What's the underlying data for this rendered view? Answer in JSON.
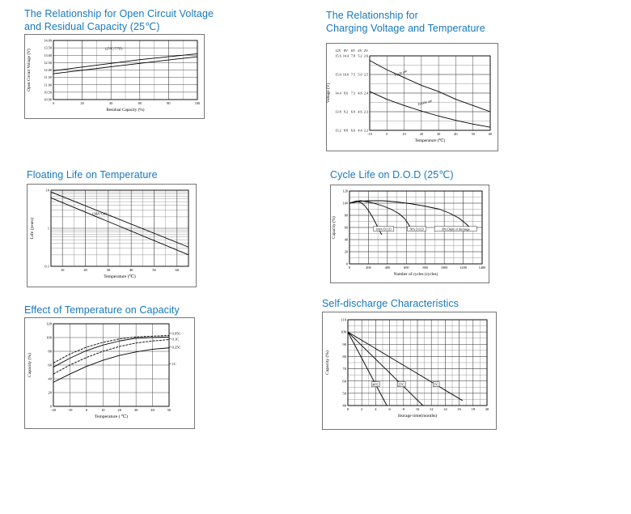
{
  "colors": {
    "title": "#1878be",
    "line": "#000000"
  },
  "chart_data": [
    {
      "type": "line",
      "title": "The Relationship for Open Circuit Voltage\nand Residual Capacity (25℃)",
      "xlabel": "Residual Capacity (%)",
      "ylabel": "Open Circuit Voltage (V)",
      "x": {
        "min": 0,
        "max": 100,
        "ticks": [
          0,
          20,
          40,
          60,
          80,
          100
        ],
        "labels": [
          "0",
          "20",
          "40",
          "60",
          "80",
          "100"
        ],
        "minor": 10
      },
      "y": {
        "min": 10,
        "max": 14,
        "ticks": [
          10,
          10.5,
          11,
          11.5,
          12,
          12.5,
          13,
          13.5,
          14
        ],
        "labels": [
          "10.00",
          "10.50",
          "11.00",
          "11.50",
          "12.00",
          "12.50",
          "13.00",
          "13.50",
          "14.00"
        ]
      },
      "series": [
        {
          "name": "upper-line",
          "points": [
            [
              0,
              11.95
            ],
            [
              20,
              12.2
            ],
            [
              40,
              12.45
            ],
            [
              60,
              12.7
            ],
            [
              80,
              12.9
            ],
            [
              100,
              13.1
            ]
          ]
        },
        {
          "name": "lower-line",
          "points": [
            [
              0,
              11.75
            ],
            [
              20,
              11.98
            ],
            [
              40,
              12.22
            ],
            [
              60,
              12.45
            ],
            [
              80,
              12.68
            ],
            [
              100,
              12.9
            ]
          ]
        }
      ],
      "annotations": [
        {
          "x": 42,
          "y": 13.45,
          "text": "(25℃/77℉)",
          "size": 4.2
        }
      ]
    },
    {
      "type": "line",
      "title": "The Relationship for\nCharging Voltage and Temperature",
      "xlabel": "Temperature (℃)",
      "ylabel": "Voltage (V)",
      "x": {
        "min": -10,
        "max": 60,
        "ticks": [
          -10,
          0,
          10,
          20,
          30,
          40,
          50,
          60
        ],
        "labels": [
          "-10",
          "0",
          "10",
          "20",
          "30",
          "40",
          "50",
          "60"
        ]
      },
      "y": {
        "min": 13.2,
        "max": 15.6,
        "ticks": [
          13.2,
          13.8,
          14.4,
          15,
          15.6
        ],
        "minor": 0.3,
        "hide_labels": true
      },
      "y_multi": {
        "headers": [
          "12V",
          "8V",
          "6V",
          "4V",
          "2V"
        ],
        "rows": [
          [
            "15.6",
            "10.4",
            "7.8",
            "5.2",
            "2.6"
          ],
          [
            "15.0",
            "10.0",
            "7.5",
            "5.0",
            "2.5"
          ],
          [
            "14.4",
            "9.6",
            "7.2",
            "4.8",
            "2.4"
          ],
          [
            "13.8",
            "9.2",
            "6.9",
            "4.6",
            "2.3"
          ],
          [
            "13.2",
            "8.8",
            "6.6",
            "4.4",
            "2.2"
          ]
        ]
      },
      "series": [
        {
          "name": "cycle-use",
          "points": [
            [
              -10,
              15.45
            ],
            [
              0,
              15.15
            ],
            [
              10,
              14.9
            ],
            [
              20,
              14.65
            ],
            [
              30,
              14.45
            ],
            [
              40,
              14.2
            ],
            [
              50,
              14.0
            ],
            [
              60,
              13.8
            ]
          ]
        },
        {
          "name": "trickle-use",
          "points": [
            [
              -10,
              14.45
            ],
            [
              0,
              14.2
            ],
            [
              10,
              14.0
            ],
            [
              20,
              13.82
            ],
            [
              30,
              13.66
            ],
            [
              40,
              13.52
            ],
            [
              50,
              13.4
            ],
            [
              60,
              13.3
            ]
          ]
        }
      ],
      "annotations": [
        {
          "x": 8,
          "y": 15.05,
          "text": "Cycle use",
          "size": 4.2,
          "rotate": -20
        },
        {
          "x": 22,
          "y": 14.1,
          "text": "Trickle use",
          "size": 4.2,
          "rotate": -16
        }
      ]
    },
    {
      "type": "line",
      "title": "Floating Life on Temperature",
      "xlabel": "Temperature (℃)",
      "ylabel": "Life (years)",
      "x": {
        "min": 5,
        "max": 65,
        "ticks": [
          10,
          20,
          30,
          40,
          50,
          60
        ],
        "labels": [
          "10",
          "20",
          "30",
          "40",
          "50",
          "60"
        ],
        "minor": 5
      },
      "y": {
        "min": 0.1,
        "max": 10,
        "scale": "log",
        "ticks": [
          0.1,
          1,
          10
        ],
        "labels": [
          "0.1",
          "1",
          "10"
        ],
        "log_minor": true
      },
      "series": [
        {
          "name": "upper-band-line",
          "points": [
            [
              5,
              9
            ],
            [
              65,
              0.32
            ]
          ]
        },
        {
          "name": "lower-band-line",
          "points": [
            [
              5,
              6.3
            ],
            [
              65,
              0.2
            ]
          ]
        }
      ],
      "annotations": [
        {
          "x": 26,
          "y": 2.4,
          "text": "1.96V/Cell",
          "size": 4.2
        }
      ]
    },
    {
      "type": "line",
      "title": "Cycle Life on D.O.D (25℃)",
      "xlabel": "Number of cycles (cycles)",
      "ylabel": "Capacity (%)",
      "x": {
        "min": 0,
        "max": 1400,
        "ticks": [
          0,
          200,
          400,
          600,
          800,
          1000,
          1200,
          1400
        ],
        "labels": [
          "0",
          "200",
          "400",
          "600",
          "800",
          "1000",
          "1200",
          "1400"
        ],
        "minor": 100
      },
      "y": {
        "min": 0,
        "max": 120,
        "ticks": [
          0,
          20,
          40,
          60,
          80,
          100,
          120
        ],
        "labels": [
          "0",
          "20",
          "40",
          "60",
          "80",
          "100",
          "120"
        ],
        "minor": 10
      },
      "series": [
        {
          "name": "100-percent-dod",
          "points": [
            [
              0,
              100
            ],
            [
              40,
              102
            ],
            [
              80,
              103
            ],
            [
              120,
              101
            ],
            [
              160,
              96
            ],
            [
              200,
              88
            ],
            [
              240,
              78
            ],
            [
              280,
              66
            ],
            [
              320,
              54
            ],
            [
              340,
              48
            ]
          ]
        },
        {
          "name": "50-percent-dod",
          "points": [
            [
              0,
              100
            ],
            [
              60,
              103
            ],
            [
              120,
              104
            ],
            [
              200,
              102
            ],
            [
              280,
              99
            ],
            [
              360,
              95
            ],
            [
              440,
              90
            ],
            [
              520,
              83
            ],
            [
              580,
              75
            ],
            [
              620,
              66
            ],
            [
              650,
              58
            ]
          ]
        },
        {
          "name": "30-percent-dod",
          "points": [
            [
              0,
              100
            ],
            [
              100,
              103
            ],
            [
              200,
              104
            ],
            [
              350,
              104
            ],
            [
              500,
              102
            ],
            [
              650,
              99
            ],
            [
              800,
              95
            ],
            [
              950,
              90
            ],
            [
              1050,
              84
            ],
            [
              1150,
              76
            ],
            [
              1230,
              66
            ],
            [
              1270,
              60
            ]
          ]
        }
      ],
      "annotations": [
        {
          "x": 360,
          "y": 57,
          "text": "100% D.O.D",
          "size": 3.6,
          "box": true
        },
        {
          "x": 710,
          "y": 57,
          "text": "50% D.O.D",
          "size": 3.6,
          "box": true
        },
        {
          "x": 1120,
          "y": 57,
          "text": "30% Depth of discharge",
          "size": 3.6,
          "box": true
        }
      ]
    },
    {
      "type": "line",
      "title": "Effect of Temperature on Capacity",
      "xlabel": "Temperature ( ℃)",
      "ylabel": "Capacity (%)",
      "x": {
        "min": -20,
        "max": 50,
        "ticks": [
          -20,
          -10,
          0,
          10,
          20,
          30,
          40,
          50
        ],
        "labels": [
          "-20",
          "-10",
          "0",
          "10",
          "20",
          "30",
          "40",
          "50"
        ]
      },
      "y": {
        "min": 0,
        "max": 120,
        "ticks": [
          0,
          20,
          40,
          60,
          80,
          100,
          120
        ],
        "labels": [
          "0",
          "20",
          "40",
          "60",
          "80",
          "100",
          "120"
        ]
      },
      "series": [
        {
          "name": "0.05C",
          "dash": "3,1.2",
          "points": [
            [
              -20,
              63
            ],
            [
              -10,
              76
            ],
            [
              0,
              86
            ],
            [
              10,
              93
            ],
            [
              20,
              98
            ],
            [
              30,
              101
            ],
            [
              40,
              102
            ],
            [
              50,
              103
            ]
          ]
        },
        {
          "name": "0.1C",
          "points": [
            [
              -20,
              57
            ],
            [
              -10,
              70
            ],
            [
              0,
              81
            ],
            [
              10,
              89
            ],
            [
              20,
              95
            ],
            [
              30,
              99
            ],
            [
              40,
              100
            ],
            [
              50,
              101
            ]
          ]
        },
        {
          "name": "0.25C",
          "dash": "3,1.2",
          "points": [
            [
              -20,
              47
            ],
            [
              -10,
              60
            ],
            [
              0,
              71
            ],
            [
              10,
              80
            ],
            [
              20,
              87
            ],
            [
              30,
              92
            ],
            [
              40,
              95
            ],
            [
              50,
              97
            ]
          ]
        },
        {
          "name": "1C",
          "points": [
            [
              -20,
              35
            ],
            [
              -10,
              47
            ],
            [
              0,
              58
            ],
            [
              10,
              67
            ],
            [
              20,
              74
            ],
            [
              30,
              79
            ],
            [
              40,
              83
            ],
            [
              50,
              85
            ]
          ]
        }
      ],
      "right_labels": [
        {
          "y": 106,
          "text": "0.05C"
        },
        {
          "y": 98,
          "text": "0.1C"
        },
        {
          "y": 86,
          "text": "0.25C"
        },
        {
          "y": 62,
          "text": "1C"
        }
      ]
    },
    {
      "type": "line",
      "title": "Self-discharge Characteristics",
      "xlabel": "Storage time(months)",
      "ylabel": "Capacity (%)",
      "x": {
        "min": 0,
        "max": 20,
        "ticks": [
          0,
          2,
          4,
          6,
          8,
          10,
          12,
          14,
          16,
          18,
          20
        ],
        "labels": [
          "0",
          "2",
          "4",
          "6",
          "8",
          "10",
          "12",
          "14",
          "16",
          "18",
          "20"
        ],
        "minor": 1
      },
      "y": {
        "min": 40,
        "max": 110,
        "ticks": [
          40,
          50,
          60,
          70,
          80,
          90,
          100,
          110
        ],
        "labels": [
          "40",
          "50",
          "60",
          "70",
          "80",
          "90",
          "100",
          "110"
        ],
        "minor": 5
      },
      "series": [
        {
          "name": "40c-line",
          "points": [
            [
              0,
              100
            ],
            [
              5.6,
              40
            ]
          ]
        },
        {
          "name": "25c-line",
          "points": [
            [
              0,
              100
            ],
            [
              10.8,
              40
            ]
          ]
        },
        {
          "name": "5c-line",
          "points": [
            [
              0,
              100
            ],
            [
              16.5,
              44
            ]
          ]
        }
      ],
      "annotations": [
        {
          "x": 4,
          "y": 57,
          "text": "40℃",
          "size": 3.8,
          "box": true
        },
        {
          "x": 7.7,
          "y": 57,
          "text": "25℃",
          "size": 3.8,
          "box": true
        },
        {
          "x": 12.7,
          "y": 57,
          "text": "5℃",
          "size": 3.8,
          "box": true
        }
      ]
    }
  ]
}
